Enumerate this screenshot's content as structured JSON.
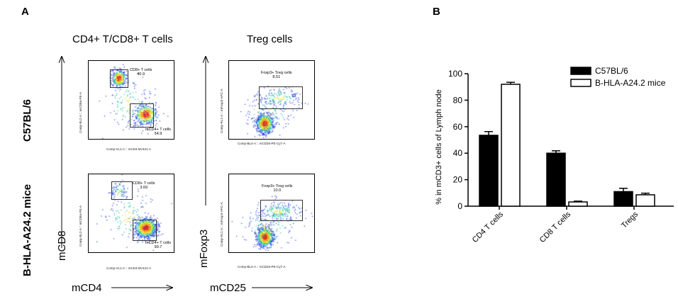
{
  "panel_a": {
    "letter": "A",
    "col1_title": "CD4+ T/CD8+ T cells",
    "col2_title": "Treg cells",
    "row1_label": "C57BL/6",
    "row2_label": "B-HLA-A24.2 mice",
    "y_axis_left": "mCD8",
    "y_axis_right": "mFoxp3",
    "x_axis_left": "mCD4",
    "x_axis_right": "mCD25",
    "plots": {
      "p11": {
        "xlabel": "Comp-VL1-A :: mCD4-BV421-A",
        "ylabel": "Comp-BL2-A :: mCD8a-PE-A",
        "gate1_name": "CD8+ T cells",
        "gate1_value": "40.9",
        "gate2_name": "mCD4+ T cells",
        "gate2_value": "54.9"
      },
      "p12": {
        "xlabel": "Comp-BL4-A :: mCD25-PE-Cy7-A",
        "ylabel": "Comp-RL1-A :: mFoxp3-APC-A",
        "gate1_name": "Foxp3+ Treg cells",
        "gate1_value": "8.51"
      },
      "p21": {
        "xlabel": "Comp-VL1-A :: mCD4-BV421-A",
        "ylabel": "Comp-BL2-A :: mCD8a-PE-A",
        "gate1_name": "CD8+ T cells",
        "gate1_value": "3.69",
        "gate2_name": "mCD4+ T cells",
        "gate2_value": "90.7"
      },
      "p22": {
        "xlabel": "Comp-BL4-A :: mCD25-PE-Cy7-A",
        "ylabel": "Comp-RL1-A :: mFoxp3-APC-A",
        "gate1_name": "Foxp3+ Treg cells",
        "gate1_value": "10.0"
      }
    }
  },
  "panel_b": {
    "letter": "B"
  },
  "chart_data": {
    "type": "bar",
    "categories": [
      "CD4 T cells",
      "CD8 T cells",
      "Tregs"
    ],
    "series": [
      {
        "name": "C57BL/6",
        "values": [
          53.5,
          40,
          11
        ],
        "errors": [
          2.8,
          1.8,
          2.5
        ],
        "fill": "#000000"
      },
      {
        "name": "B-HLA-A24.2 mice",
        "values": [
          92,
          3.2,
          8.6
        ],
        "errors": [
          1.5,
          0.6,
          1.2
        ],
        "fill": "#ffffff"
      }
    ],
    "ylabel": "% in mCD3+ cells of Lymph node",
    "ylim": [
      0,
      100
    ],
    "yticks": [
      0,
      20,
      40,
      60,
      80,
      100
    ],
    "legend": "top-right"
  }
}
